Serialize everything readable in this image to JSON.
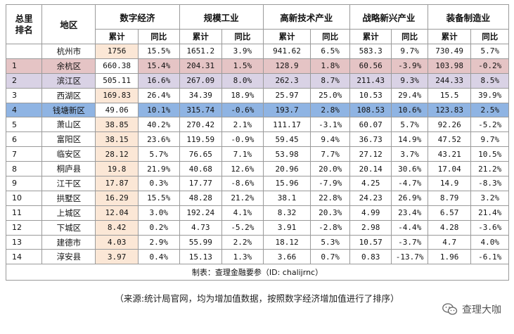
{
  "header": {
    "rank_label": "总里\n排名",
    "region_label": "地区",
    "categories": [
      "数字经济",
      "规模工业",
      "高新技术产业",
      "战略新兴产业",
      "装备制造业"
    ],
    "sub_cumulative": "累计",
    "sub_yoy": "同比"
  },
  "rows": [
    {
      "rank": "",
      "region": "杭州市",
      "values": [
        "1756",
        "15.5%",
        "1651.2",
        "3.9%",
        "941.62",
        "6.5%",
        "583.3",
        "9.7%",
        "730.49",
        "5.7%"
      ]
    },
    {
      "rank": "1",
      "region": "余杭区",
      "values": [
        "660.38",
        "15.4%",
        "204.31",
        "1.5%",
        "128.9",
        "1.8%",
        "60.56",
        "-3.9%",
        "103.98",
        "-0.2%"
      ]
    },
    {
      "rank": "2",
      "region": "滨江区",
      "values": [
        "505.11",
        "16.6%",
        "267.09",
        "8.0%",
        "262.3",
        "8.7%",
        "211.43",
        "9.3%",
        "244.33",
        "8.5%"
      ]
    },
    {
      "rank": "3",
      "region": "西湖区",
      "values": [
        "169.83",
        "26.4%",
        "34.39",
        "18.9%",
        "25.97",
        "25.0%",
        "10.53",
        "29.4%",
        "15.5",
        "39.9%"
      ]
    },
    {
      "rank": "4",
      "region": "钱塘新区",
      "values": [
        "49.06",
        "10.1%",
        "315.74",
        "-0.6%",
        "193.7",
        "2.8%",
        "108.53",
        "10.6%",
        "123.83",
        "2.5%"
      ]
    },
    {
      "rank": "5",
      "region": "萧山区",
      "values": [
        "38.85",
        "40.2%",
        "270.42",
        "2.1%",
        "111.17",
        "-3.1%",
        "60.07",
        "5.7%",
        "92.26",
        "-5.2%"
      ]
    },
    {
      "rank": "6",
      "region": "富阳区",
      "values": [
        "38.15",
        "23.6%",
        "119.59",
        "-0.9%",
        "59.45",
        "9.4%",
        "36.73",
        "14.9%",
        "47.52",
        "9.7%"
      ]
    },
    {
      "rank": "7",
      "region": "临安区",
      "values": [
        "28.12",
        "5.7%",
        "76.65",
        "7.1%",
        "53.98",
        "7.7%",
        "27.12",
        "3.7%",
        "43.21",
        "10.5%"
      ]
    },
    {
      "rank": "8",
      "region": "桐庐县",
      "values": [
        "19.8",
        "21.9%",
        "40.68",
        "12.6%",
        "20.96",
        "20.0%",
        "20.14",
        "30.6%",
        "17.04",
        "21.2%"
      ]
    },
    {
      "rank": "9",
      "region": "江干区",
      "values": [
        "17.87",
        "0.3%",
        "17.77",
        "-8.6%",
        "15.96",
        "-7.9%",
        "4.25",
        "-4.7%",
        "14.9",
        "-8.3%"
      ]
    },
    {
      "rank": "10",
      "region": "拱墅区",
      "values": [
        "16.29",
        "15.5%",
        "48.28",
        "21.2%",
        "38.1",
        "22.8%",
        "24.23",
        "26.9%",
        "8.79",
        "3.2%"
      ]
    },
    {
      "rank": "11",
      "region": "上城区",
      "values": [
        "12.04",
        "3.0%",
        "192.24",
        "4.1%",
        "8.32",
        "20.3%",
        "4.99",
        "23.4%",
        "6.57",
        "21.4%"
      ]
    },
    {
      "rank": "12",
      "region": "下城区",
      "values": [
        "8.42",
        "0.2%",
        "4.73",
        "-5.2%",
        "3.91",
        "-2.8%",
        "2.98",
        "-4.4%",
        "4.28",
        "-3.6%"
      ]
    },
    {
      "rank": "13",
      "region": "建德市",
      "values": [
        "4.03",
        "2.9%",
        "55.99",
        "2.2%",
        "18.12",
        "5.3%",
        "10.57",
        "-3.7%",
        "4.7",
        "4.0%"
      ]
    },
    {
      "rank": "14",
      "region": "淳安县",
      "values": [
        "3.97",
        "0.4%",
        "15.13",
        "1.3%",
        "3.66",
        "0.7%",
        "0.83",
        "-13.7%",
        "1.96",
        "-6.1%"
      ]
    }
  ],
  "highlight_colors": {
    "rank1": "#e5c4c5",
    "rank2": "#d9d2e5",
    "rank4": "#8fb4e3",
    "digital_cumulative": "#fbe7d6"
  },
  "footer": "制表：查理金融要参（ID: chalijrnc）",
  "note": "（来源:统计局官网，均为增加值数据，按照数字经济增加值进行了排序）",
  "watermark": {
    "text": "查理大咖",
    "icon": "wechat-icon"
  }
}
